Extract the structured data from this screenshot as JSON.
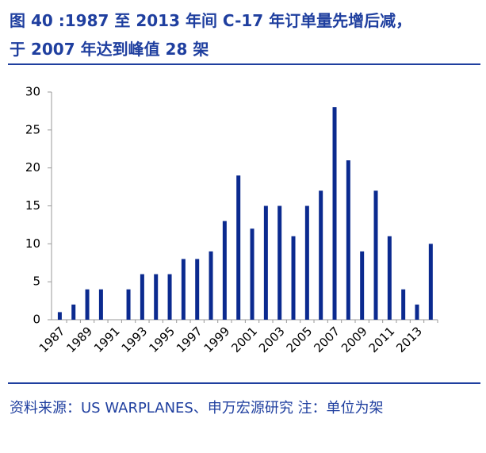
{
  "chart_data": {
    "type": "bar",
    "title": [
      "图 40 :1987 至 2013 年间 C-17 年订单量先增后减，",
      "于 2007 年达到峰值 28 架"
    ],
    "source": "资料来源：US  WARPLANES、申万宏源研究  注：单位为架",
    "categories": [
      "1987",
      null,
      "1989",
      null,
      "1991",
      null,
      "1993",
      null,
      "1995",
      null,
      "1997",
      null,
      "1999",
      null,
      "2001",
      null,
      "2003",
      null,
      "2005",
      null,
      "2007",
      null,
      "2009",
      null,
      "2011",
      null,
      "2013",
      null
    ],
    "values": [
      1,
      2,
      4,
      4,
      0,
      4,
      6,
      6,
      6,
      8,
      8,
      9,
      13,
      19,
      12,
      15,
      15,
      11,
      15,
      17,
      28,
      21,
      9,
      17,
      11,
      4,
      2,
      10
    ],
    "color": "#0b2a8f",
    "ylim": [
      0,
      30
    ],
    "yticks": [
      0,
      5,
      10,
      15,
      20,
      25,
      30
    ]
  }
}
